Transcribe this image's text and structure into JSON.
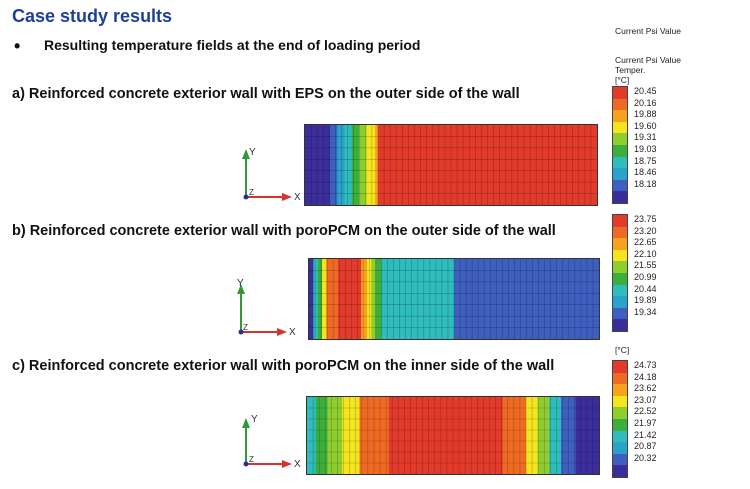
{
  "title": "Case study results",
  "bullet": "Resulting temperature fields at the end of loading period",
  "colors": {
    "title": "#1f3f9a",
    "palette": [
      "#3b2d9c",
      "#3f5fbf",
      "#29a3c9",
      "#2fbcbc",
      "#3cae3c",
      "#8fcd2e",
      "#f4e51e",
      "#f7a21e",
      "#ef6a22",
      "#e23b2b"
    ],
    "axis_y": "#2e9a3a",
    "axis_x": "#d8322a"
  },
  "header_labels": {
    "current_psi_1": "Current Psi Value",
    "current_psi_2": "Current Psi Value",
    "temper": "Temper.",
    "unit": "[°C]",
    "unit_c": "[°C]"
  },
  "cases": [
    {
      "label": "a) Reinforced concrete exterior wall with EPS on the outer side of the wall",
      "legend": [
        "20.45",
        "20.16",
        "19.88",
        "19.60",
        "19.31",
        "19.03",
        "18.75",
        "18.46",
        "18.18"
      ],
      "bands": [
        {
          "frac": 0.085,
          "color": "#3b2d9c"
        },
        {
          "frac": 0.025,
          "color": "#3f5fbf"
        },
        {
          "frac": 0.025,
          "color": "#29a3c9"
        },
        {
          "frac": 0.025,
          "color": "#2fbcbc"
        },
        {
          "frac": 0.025,
          "color": "#3cae3c"
        },
        {
          "frac": 0.025,
          "color": "#8fcd2e"
        },
        {
          "frac": 0.03,
          "color": "#f4e51e"
        },
        {
          "frac": 0.01,
          "color": "#f7a21e"
        },
        {
          "frac": 0.75,
          "color": "#e23b2b"
        }
      ]
    },
    {
      "label": "b) Reinforced concrete exterior wall with poroPCM on the outer side of the wall",
      "legend": [
        "23.75",
        "23.20",
        "22.65",
        "22.10",
        "21.55",
        "20.99",
        "20.44",
        "19.89",
        "19.34"
      ],
      "bands": [
        {
          "frac": 0.015,
          "color": "#3b2d9c"
        },
        {
          "frac": 0.015,
          "color": "#2fbcbc"
        },
        {
          "frac": 0.015,
          "color": "#3cae3c"
        },
        {
          "frac": 0.015,
          "color": "#f4e51e"
        },
        {
          "frac": 0.04,
          "color": "#ef6a22"
        },
        {
          "frac": 0.08,
          "color": "#e23b2b"
        },
        {
          "frac": 0.02,
          "color": "#f7a21e"
        },
        {
          "frac": 0.015,
          "color": "#f4e51e"
        },
        {
          "frac": 0.015,
          "color": "#8fcd2e"
        },
        {
          "frac": 0.02,
          "color": "#3cae3c"
        },
        {
          "frac": 0.25,
          "color": "#2fbcbc"
        },
        {
          "frac": 0.5,
          "color": "#3f5fbf"
        }
      ]
    },
    {
      "label": "c) Reinforced concrete exterior wall with poroPCM on the inner side of the wall",
      "legend": [
        "24.73",
        "24.18",
        "23.62",
        "23.07",
        "22.52",
        "21.97",
        "21.42",
        "20.87",
        "20.32"
      ],
      "bands": [
        {
          "frac": 0.03,
          "color": "#2fbcbc"
        },
        {
          "frac": 0.04,
          "color": "#3cae3c"
        },
        {
          "frac": 0.05,
          "color": "#8fcd2e"
        },
        {
          "frac": 0.06,
          "color": "#f4e51e"
        },
        {
          "frac": 0.1,
          "color": "#ef6a22"
        },
        {
          "frac": 0.39,
          "color": "#e23b2b"
        },
        {
          "frac": 0.08,
          "color": "#ef6a22"
        },
        {
          "frac": 0.04,
          "color": "#f4e51e"
        },
        {
          "frac": 0.04,
          "color": "#8fcd2e"
        },
        {
          "frac": 0.04,
          "color": "#2fbcbc"
        },
        {
          "frac": 0.05,
          "color": "#3f5fbf"
        },
        {
          "frac": 0.08,
          "color": "#3b2d9c"
        }
      ]
    }
  ],
  "axis_labels": {
    "y": "Y",
    "x": "X",
    "z": "Z"
  },
  "legend_colors": [
    "#e23b2b",
    "#ef6a22",
    "#f7a21e",
    "#f4e51e",
    "#8fcd2e",
    "#3cae3c",
    "#2fbcbc",
    "#29a3c9",
    "#3f5fbf",
    "#3b2d9c"
  ]
}
